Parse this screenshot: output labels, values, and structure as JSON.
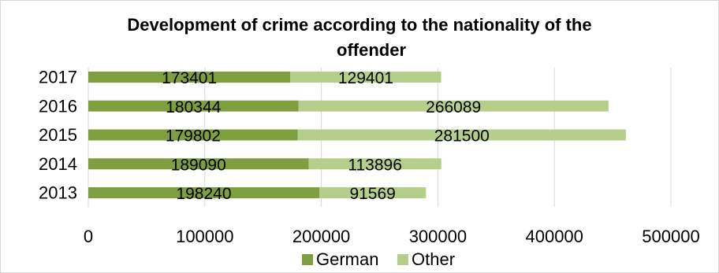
{
  "chart_data": {
    "type": "bar",
    "orientation": "horizontal",
    "stacked": true,
    "title_lines": [
      "Development of crime according to the nationality of the",
      "offender"
    ],
    "categories": [
      "2017",
      "2016",
      "2015",
      "2014",
      "2013"
    ],
    "series": [
      {
        "name": "German",
        "color": "#7f9f3f",
        "values": [
          173401,
          180344,
          179802,
          189090,
          198240
        ]
      },
      {
        "name": "Other",
        "color": "#b5cf8a",
        "values": [
          129401,
          266089,
          281500,
          113896,
          91569
        ]
      }
    ],
    "xlim": [
      0,
      500000
    ],
    "x_ticks": [
      0,
      100000,
      200000,
      300000,
      400000,
      500000
    ],
    "grid": true,
    "legend_position": "bottom"
  }
}
